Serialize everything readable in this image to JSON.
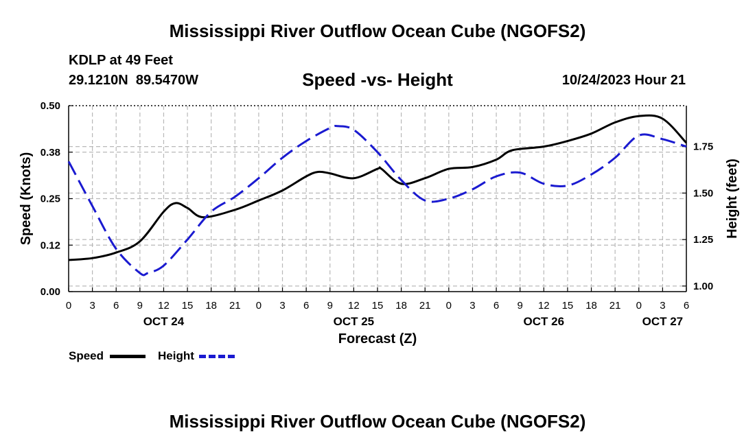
{
  "header": {
    "title": "Mississippi River Outflow Ocean Cube (NGOFS2)",
    "station": "KDLP at 49 Feet",
    "coords": "29.1210N  89.5470W",
    "subtitle": "Speed -vs- Height",
    "timestamp": "10/24/2023 Hour 21"
  },
  "footer": {
    "title": "Mississippi River Outflow Ocean Cube (NGOFS2)"
  },
  "legend": {
    "speed_label": "Speed",
    "height_label": "Height"
  },
  "colors": {
    "speed": "#000000",
    "height": "#1a1ad0",
    "grid": "#b8b8b8"
  },
  "chart_data": {
    "type": "line",
    "title": "Speed -vs- Height",
    "xlabel": "Forecast (Z)",
    "ylabel": "Speed (Knots)",
    "y2label": "Height (feet)",
    "x_unit": "hours from 00Z Oct 24",
    "xlim": [
      0,
      78
    ],
    "ylim": [
      0,
      0.5
    ],
    "y2lim": [
      0.97,
      1.97
    ],
    "x_ticks": [
      0,
      3,
      6,
      9,
      12,
      15,
      18,
      21,
      24,
      27,
      30,
      33,
      36,
      39,
      42,
      45,
      48,
      51,
      54,
      57,
      60,
      63,
      66,
      69,
      72,
      75,
      78
    ],
    "x_tick_labels": [
      "0",
      "3",
      "6",
      "9",
      "12",
      "15",
      "18",
      "21",
      "0",
      "3",
      "6",
      "9",
      "12",
      "15",
      "18",
      "21",
      "0",
      "3",
      "6",
      "9",
      "12",
      "15",
      "18",
      "21",
      "0",
      "3",
      "6"
    ],
    "y_ticks": [
      0.0,
      0.125,
      0.25,
      0.375,
      0.5
    ],
    "y_tick_labels": [
      "0.00",
      "0.12",
      "0.25",
      "0.38",
      "0.50"
    ],
    "y2_ticks": [
      1.0,
      1.25,
      1.5,
      1.75
    ],
    "y2_tick_labels": [
      "1.00",
      "1.25",
      "1.50",
      "1.75"
    ],
    "date_labels": [
      {
        "x": 12,
        "label": "OCT 24"
      },
      {
        "x": 36,
        "label": "OCT 25"
      },
      {
        "x": 60,
        "label": "OCT 26"
      },
      {
        "x": 75,
        "label": "OCT 27"
      }
    ],
    "series": [
      {
        "name": "Speed",
        "axis": "left",
        "style": "solid",
        "x": [
          0,
          3,
          6,
          9,
          12,
          13.5,
          15,
          17,
          21,
          24,
          27,
          30,
          31.5,
          33,
          36,
          39,
          39.5,
          42,
          45,
          48,
          51,
          54,
          56,
          60,
          63,
          66,
          69,
          72,
          75,
          78
        ],
        "values": [
          0.085,
          0.09,
          0.105,
          0.135,
          0.215,
          0.238,
          0.225,
          0.2,
          0.22,
          0.245,
          0.272,
          0.31,
          0.322,
          0.318,
          0.305,
          0.33,
          0.33,
          0.29,
          0.305,
          0.33,
          0.335,
          0.355,
          0.38,
          0.39,
          0.405,
          0.425,
          0.455,
          0.472,
          0.465,
          0.4
        ]
      },
      {
        "name": "Height",
        "axis": "right",
        "style": "dashed",
        "x": [
          0,
          3,
          6,
          9,
          10,
          12,
          15,
          18,
          21,
          24,
          27,
          30,
          33,
          34,
          36,
          39,
          42,
          45,
          48,
          51,
          54,
          57,
          60,
          63,
          66,
          69,
          72,
          75,
          78
        ],
        "values": [
          1.67,
          1.43,
          1.2,
          1.07,
          1.07,
          1.11,
          1.25,
          1.4,
          1.48,
          1.58,
          1.69,
          1.78,
          1.85,
          1.86,
          1.84,
          1.72,
          1.57,
          1.46,
          1.47,
          1.52,
          1.59,
          1.61,
          1.55,
          1.54,
          1.6,
          1.69,
          1.81,
          1.79,
          1.75
        ]
      }
    ]
  }
}
